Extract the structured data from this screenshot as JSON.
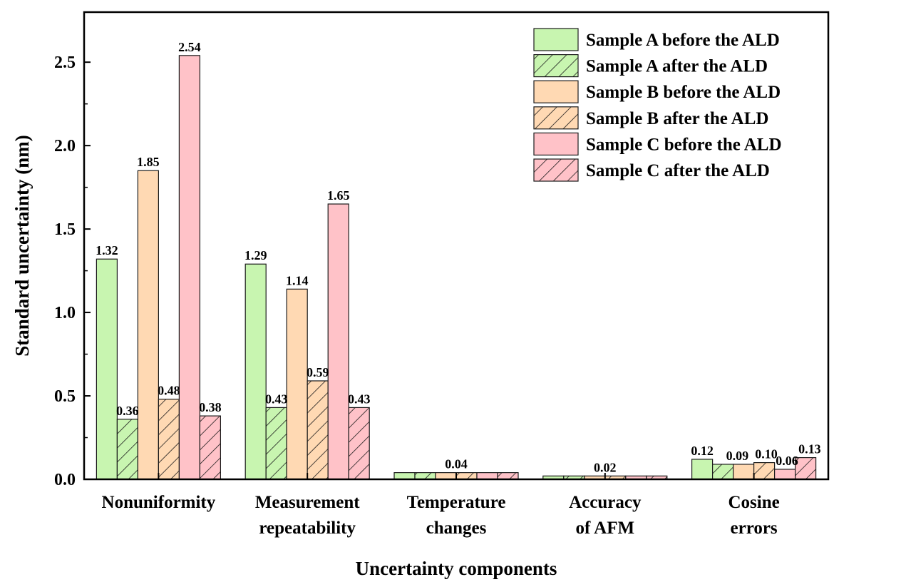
{
  "chart_data": {
    "type": "bar",
    "title": "",
    "xlabel": "Uncertainty components",
    "ylabel": "Standard uncertainty (nm)",
    "ylim": [
      0,
      2.8
    ],
    "yticks": [
      "0.0",
      "0.5",
      "1.0",
      "1.5",
      "2.0",
      "2.5"
    ],
    "categories": [
      [
        "Nonuniformity"
      ],
      [
        "Measurement",
        "repeatability"
      ],
      [
        "Temperature",
        "changes"
      ],
      [
        "Accuracy",
        "of AFM"
      ],
      [
        "Cosine",
        "errors"
      ]
    ],
    "legend_position": "top-right",
    "series": [
      {
        "name": "Sample A before the ALD",
        "color": "#c8f5b0",
        "hatched": false,
        "values": [
          1.32,
          1.29,
          0.04,
          0.02,
          0.12
        ]
      },
      {
        "name": "Sample A after the ALD",
        "color": "#c8f5b0",
        "hatched": true,
        "values": [
          0.36,
          0.43,
          0.04,
          0.02,
          0.09
        ]
      },
      {
        "name": "Sample B before the ALD",
        "color": "#ffd9b3",
        "hatched": false,
        "values": [
          1.85,
          1.14,
          0.04,
          0.02,
          0.09
        ]
      },
      {
        "name": "Sample B after the ALD",
        "color": "#ffd9b3",
        "hatched": true,
        "values": [
          0.48,
          0.59,
          0.04,
          0.02,
          0.1
        ]
      },
      {
        "name": "Sample C before the ALD",
        "color": "#ffc2c8",
        "hatched": false,
        "values": [
          2.54,
          1.65,
          0.04,
          0.02,
          0.06
        ]
      },
      {
        "name": "Sample C after the ALD",
        "color": "#ffc2c8",
        "hatched": true,
        "values": [
          0.38,
          0.43,
          0.04,
          0.02,
          0.13
        ]
      }
    ],
    "data_labels": [
      {
        "category": 0,
        "series": 0,
        "text": "1.32"
      },
      {
        "category": 0,
        "series": 1,
        "text": "0.36"
      },
      {
        "category": 0,
        "series": 2,
        "text": "1.85"
      },
      {
        "category": 0,
        "series": 3,
        "text": "0.48"
      },
      {
        "category": 0,
        "series": 4,
        "text": "2.54"
      },
      {
        "category": 0,
        "series": 5,
        "text": "0.38"
      },
      {
        "category": 1,
        "series": 0,
        "text": "1.29"
      },
      {
        "category": 1,
        "series": 1,
        "text": "0.43"
      },
      {
        "category": 1,
        "series": 2,
        "text": "1.14"
      },
      {
        "category": 1,
        "series": 3,
        "text": "0.59"
      },
      {
        "category": 1,
        "series": 4,
        "text": "1.65"
      },
      {
        "category": 1,
        "series": 5,
        "text": "0.43"
      },
      {
        "category": 2,
        "series": 2.5,
        "text": "0.04"
      },
      {
        "category": 3,
        "series": 2.5,
        "text": "0.02"
      },
      {
        "category": 4,
        "series": 0,
        "text": "0.12"
      },
      {
        "category": 4,
        "series": 1.7,
        "text": "0.09"
      },
      {
        "category": 4,
        "series": 3.1,
        "text": "0.10"
      },
      {
        "category": 4,
        "series": 4.1,
        "text": "0.06"
      },
      {
        "category": 4,
        "series": 5.2,
        "text": "0.13"
      }
    ]
  }
}
